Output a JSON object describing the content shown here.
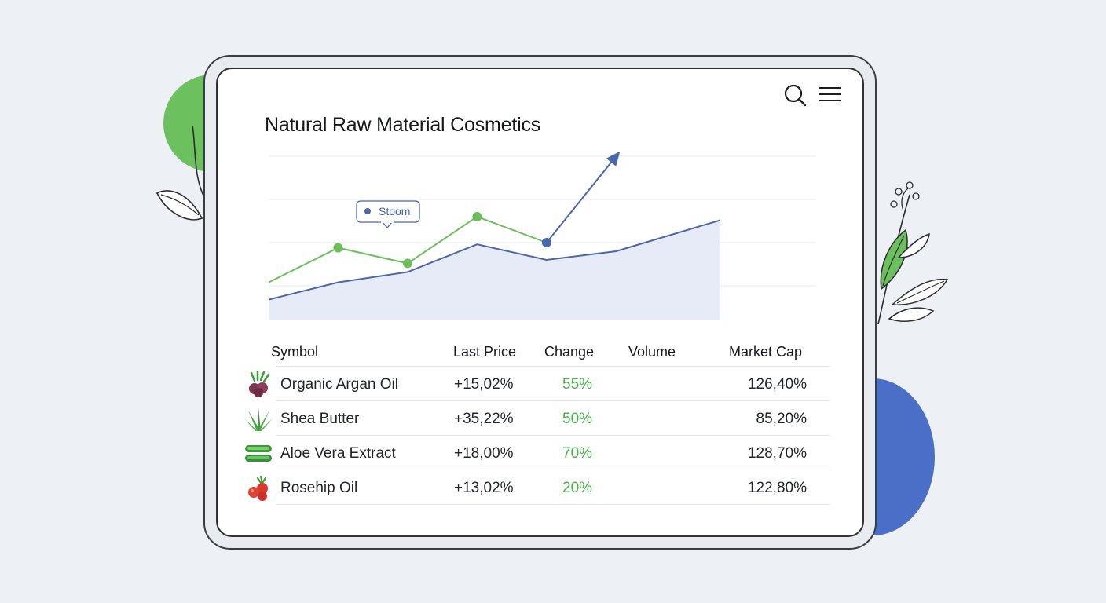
{
  "app": {
    "title": "Natural Raw Material Cosmetics",
    "icons": {
      "search": "search-icon",
      "menu": "hamburger-menu-icon"
    }
  },
  "colors": {
    "accent_green": "#6cc05e",
    "accent_blue": "#4b6fc6",
    "line_green": "#6dbf5e",
    "line_blue": "#4a66ad",
    "area_fill": "#e6ebf7",
    "positive_text": "#4ab14a"
  },
  "tooltip": {
    "label": "Stoom"
  },
  "chart_data": {
    "type": "line",
    "x": [
      0,
      1,
      2,
      3,
      4,
      5
    ],
    "series": [
      {
        "values": [
          22,
          42,
          33,
          60,
          45,
          95
        ],
        "style": "line",
        "color": "#6dbf5e",
        "markers": true,
        "arrow_end": true
      },
      {
        "values": [
          12,
          22,
          28,
          44,
          35,
          40,
          58
        ],
        "x": [
          0,
          1,
          2,
          3,
          4,
          5,
          6.5
        ],
        "style": "area",
        "color": "#4a66ad"
      }
    ],
    "ylim": [
      0,
      100
    ],
    "grid": true,
    "legend": "none"
  },
  "table": {
    "columns": [
      "Symbol",
      "Last Price",
      "Change",
      "Volume",
      "Market Cap"
    ],
    "rows": [
      {
        "icon": "argan-fruit-icon",
        "symbol": "Organic Argan Oil",
        "last_price": "+15,02%",
        "change": "55%",
        "volume": "",
        "market_cap": "126,40%"
      },
      {
        "icon": "aloe-plant-icon",
        "symbol": "Shea Butter",
        "last_price": "+35,22%",
        "change": "50%",
        "volume": "",
        "market_cap": "85,20%"
      },
      {
        "icon": "aloe-leaf-icon",
        "symbol": "Aloe Vera Extract",
        "last_price": "+18,00%",
        "change": "70%",
        "volume": "",
        "market_cap": "128,70%"
      },
      {
        "icon": "rosehip-berry-icon",
        "symbol": "Rosehip Oil",
        "last_price": "+13,02%",
        "change": "20%",
        "volume": "",
        "market_cap": "122,80%"
      }
    ]
  }
}
